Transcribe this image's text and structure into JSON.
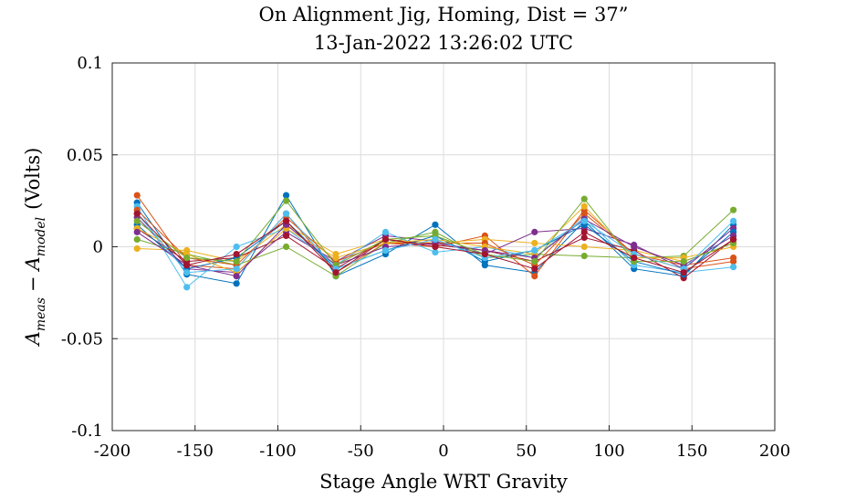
{
  "chart_data": {
    "type": "line",
    "title": "On Alignment Jig, Homing, Dist = 37”",
    "subtitle": "13-Jan-2022 13:26:02 UTC",
    "xlabel": "Stage Angle WRT Gravity",
    "ylabel_main": "A",
    "ylabel_sub1": "meas",
    "ylabel_minus": "−",
    "ylabel_sub2": "model",
    "ylabel_unit": "(Volts)",
    "xlim": [
      -200,
      200
    ],
    "ylim": [
      -0.1,
      0.1
    ],
    "xticks": [
      -200,
      -150,
      -100,
      -50,
      0,
      50,
      100,
      150,
      200
    ],
    "xtick_labels": [
      "-200",
      "-150",
      "-100",
      "-50",
      "0",
      "50",
      "100",
      "150",
      "200"
    ],
    "yticks": [
      -0.1,
      -0.05,
      0,
      0.05,
      0.1
    ],
    "ytick_labels": [
      "-0.1",
      "-0.05",
      "0",
      "0.05",
      "0.1"
    ],
    "grid": true,
    "x": [
      -185,
      -155,
      -125,
      -95,
      -65,
      -35,
      -5,
      25,
      55,
      85,
      115,
      145,
      175
    ],
    "series": [
      {
        "color": "#0072BD",
        "values": [
          0.024,
          -0.015,
          -0.02,
          0.028,
          -0.016,
          -0.004,
          0.012,
          -0.01,
          -0.014,
          0.014,
          -0.012,
          -0.016,
          0.012
        ]
      },
      {
        "color": "#D95319",
        "values": [
          0.028,
          -0.01,
          -0.012,
          0.018,
          -0.014,
          0.002,
          0.0,
          0.006,
          -0.016,
          0.02,
          -0.004,
          -0.012,
          -0.008
        ]
      },
      {
        "color": "#EDB120",
        "values": [
          -0.001,
          -0.002,
          -0.008,
          0.012,
          -0.004,
          0.004,
          0.002,
          0.004,
          0.002,
          0.0,
          -0.002,
          -0.008,
          0.002
        ]
      },
      {
        "color": "#7E2F8E",
        "values": [
          0.016,
          -0.012,
          -0.014,
          0.008,
          -0.008,
          0.006,
          0.003,
          -0.004,
          0.008,
          0.01,
          0.001,
          -0.012,
          0.01
        ]
      },
      {
        "color": "#77AC30",
        "values": [
          0.004,
          -0.004,
          -0.01,
          0.0,
          -0.016,
          0.002,
          0.008,
          -0.006,
          -0.004,
          -0.005,
          -0.006,
          -0.005,
          0.02
        ]
      },
      {
        "color": "#4DBEEE",
        "values": [
          0.022,
          -0.022,
          0.0,
          0.01,
          -0.01,
          0.008,
          -0.003,
          0.0,
          -0.006,
          0.016,
          -0.01,
          -0.014,
          -0.011
        ]
      },
      {
        "color": "#A2142F",
        "values": [
          0.01,
          -0.008,
          -0.006,
          0.006,
          -0.012,
          0.004,
          0.001,
          -0.002,
          -0.008,
          0.005,
          -0.002,
          -0.017,
          0.004
        ]
      },
      {
        "color": "#0072BD",
        "values": [
          0.012,
          -0.012,
          -0.006,
          0.014,
          -0.012,
          -0.002,
          0.006,
          -0.008,
          -0.002,
          0.012,
          -0.008,
          -0.015,
          0.008
        ]
      },
      {
        "color": "#D95319",
        "values": [
          0.02,
          -0.006,
          -0.01,
          0.016,
          -0.008,
          0.002,
          0.002,
          0.002,
          -0.01,
          0.018,
          -0.004,
          -0.01,
          -0.006
        ]
      },
      {
        "color": "#EDB120",
        "values": [
          0.01,
          -0.004,
          -0.014,
          0.01,
          -0.006,
          0.002,
          0.004,
          0.0,
          -0.004,
          0.022,
          -0.006,
          -0.006,
          0.0
        ]
      },
      {
        "color": "#7E2F8E",
        "values": [
          0.008,
          -0.01,
          -0.016,
          0.012,
          -0.01,
          0.0,
          0.002,
          -0.002,
          -0.006,
          0.015,
          0.0,
          -0.01,
          0.006
        ]
      },
      {
        "color": "#77AC30",
        "values": [
          0.014,
          -0.006,
          -0.008,
          0.025,
          -0.01,
          0.004,
          0.006,
          -0.004,
          -0.008,
          0.026,
          -0.008,
          -0.008,
          0.002
        ]
      },
      {
        "color": "#4DBEEE",
        "values": [
          0.018,
          -0.014,
          -0.012,
          0.018,
          -0.012,
          -0.002,
          0.004,
          -0.006,
          -0.002,
          0.014,
          -0.004,
          -0.012,
          0.014
        ]
      },
      {
        "color": "#A2142F",
        "values": [
          0.018,
          -0.01,
          -0.004,
          0.014,
          -0.014,
          0.004,
          0.0,
          -0.004,
          -0.012,
          0.008,
          -0.006,
          -0.014,
          0.004
        ]
      }
    ]
  }
}
